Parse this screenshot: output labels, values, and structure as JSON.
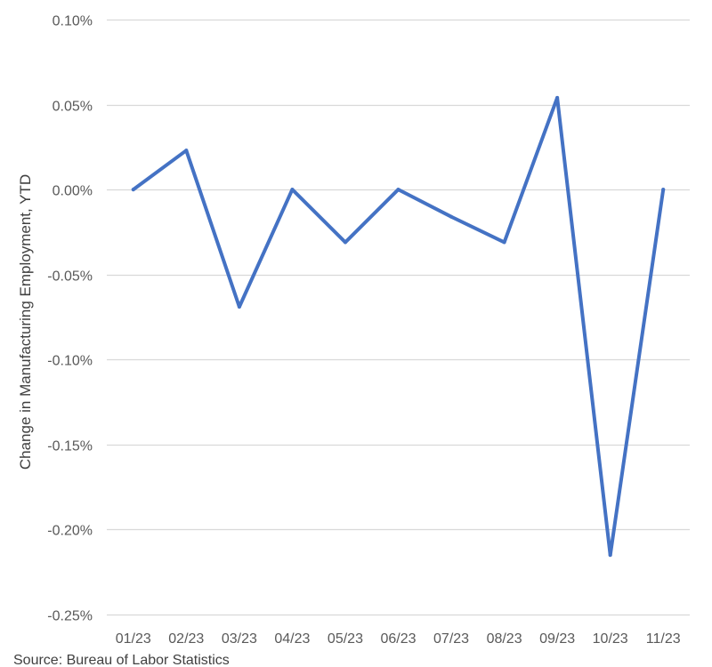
{
  "chart_data": {
    "type": "line",
    "title": "",
    "xlabel": "",
    "ylabel": "Change in Manufacturing Employment, YTD",
    "categories": [
      "01/23",
      "02/23",
      "03/23",
      "04/23",
      "05/23",
      "06/23",
      "07/23",
      "08/23",
      "09/23",
      "10/23",
      "11/23"
    ],
    "series": [
      {
        "values": [
          0.0,
          0.023,
          -0.069,
          0.0,
          -0.031,
          0.0,
          -0.016,
          -0.031,
          0.054,
          -0.215,
          0.0
        ],
        "color": "#4472C4"
      }
    ],
    "ylim": [
      -0.25,
      0.1
    ],
    "yticks": [
      0.1,
      0.05,
      0.0,
      -0.05,
      -0.1,
      -0.15,
      -0.2,
      -0.25
    ],
    "ytick_labels": [
      "0.10%",
      "0.05%",
      "0.00%",
      "-0.05%",
      "-0.10%",
      "-0.15%",
      "-0.20%",
      "-0.25%"
    ],
    "grid": true,
    "legend": "none",
    "gridline_color": "#D9D9D9"
  },
  "source": "Source: Bureau of Labor Statistics"
}
